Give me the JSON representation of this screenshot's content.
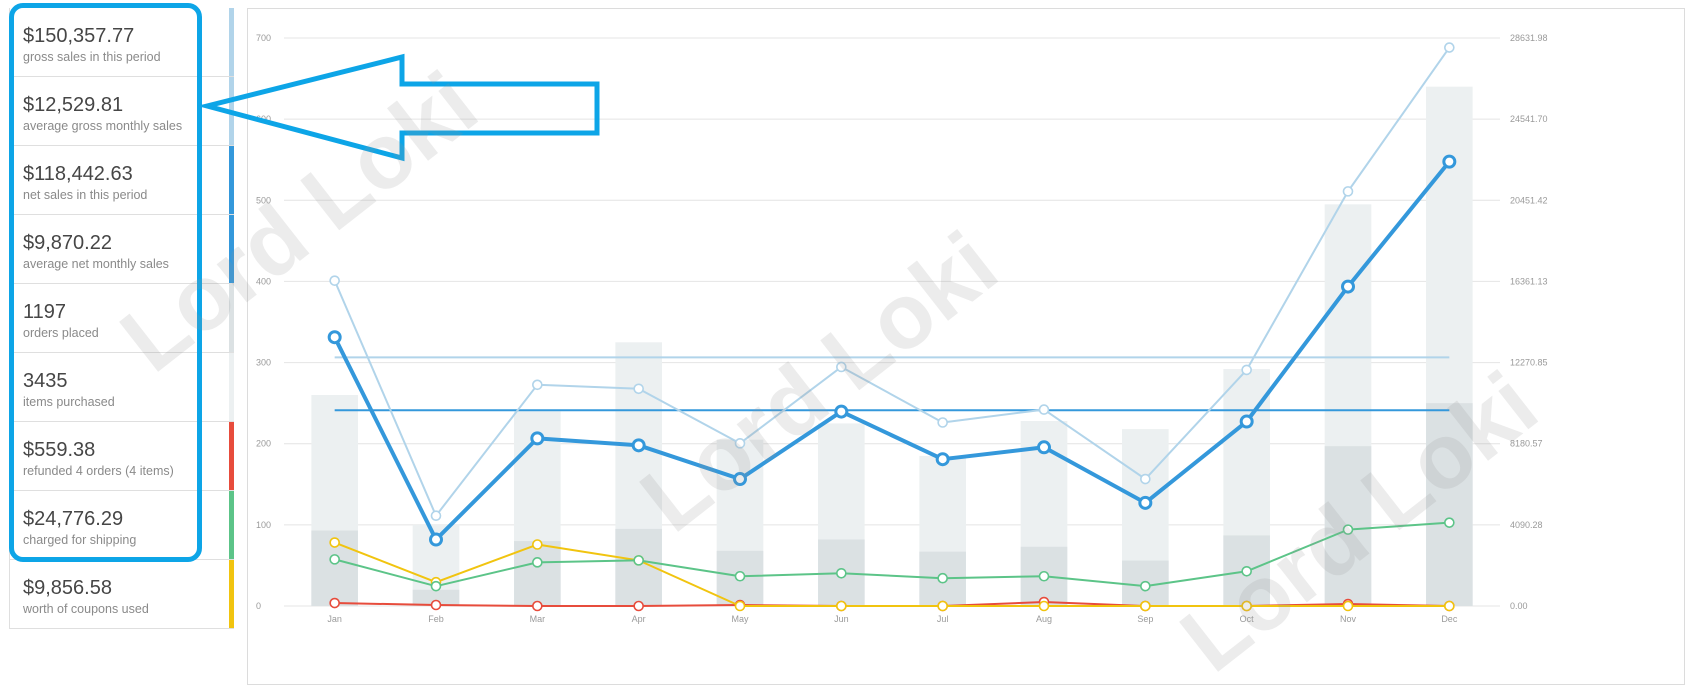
{
  "legend": [
    {
      "value": "$150,357.77",
      "label": "gross sales in this period",
      "color": "#b1d4ea"
    },
    {
      "value": "$12,529.81",
      "label": "average gross monthly sales",
      "color": "#b1d4ea"
    },
    {
      "value": "$118,442.63",
      "label": "net sales in this period",
      "color": "#3498db"
    },
    {
      "value": "$9,870.22",
      "label": "average net monthly sales",
      "color": "#3498db"
    },
    {
      "value": "1197",
      "label": "orders placed",
      "color": "#dbe1e3"
    },
    {
      "value": "3435",
      "label": "items purchased",
      "color": "#ecf0f1"
    },
    {
      "value": "$559.38",
      "label": "refunded 4 orders (4 items)",
      "color": "#e74c3c"
    },
    {
      "value": "$24,776.29",
      "label": "charged for shipping",
      "color": "#5cc488"
    },
    {
      "value": "$9,856.58",
      "label": "worth of coupons used",
      "color": "#f1c40f"
    }
  ],
  "watermark": "Lord Loki",
  "chart_data": {
    "type": "bar",
    "categories": [
      "Jan",
      "Feb",
      "Mar",
      "Apr",
      "May",
      "Jun",
      "Jul",
      "Aug",
      "Sep",
      "Oct",
      "Nov",
      "Dec"
    ],
    "ylim": [
      0,
      700
    ],
    "y_ticks": [
      "0",
      "100",
      "200",
      "300",
      "400",
      "500",
      "600",
      "700"
    ],
    "y2lim": [
      0,
      28631.98
    ],
    "y2_ticks": [
      "0.00",
      "4090.28",
      "8180.57",
      "12270.85",
      "16361.13",
      "20451.42",
      "24541.70",
      "28631.98"
    ],
    "series": [
      {
        "type": "bar",
        "axis": "left",
        "color": "#ecf0f1",
        "values": [
          260,
          100,
          240,
          325,
          205,
          225,
          185,
          228,
          218,
          292,
          495,
          640
        ]
      },
      {
        "type": "bar",
        "axis": "left",
        "color": "#dbe1e3",
        "values": [
          93,
          20,
          80,
          95,
          68,
          82,
          67,
          73,
          56,
          87,
          197,
          250
        ]
      },
      {
        "type": "line",
        "axis": "right",
        "color": "#b1d4ea",
        "width": 2,
        "values": [
          16400,
          4550,
          11150,
          10950,
          8200,
          12050,
          9250,
          9900,
          6400,
          11900,
          20900,
          28150
        ]
      },
      {
        "type": "line",
        "axis": "right",
        "color": "#3498db",
        "width": 4,
        "values": [
          13550,
          3350,
          8450,
          8100,
          6400,
          9800,
          7400,
          8000,
          5200,
          9300,
          16100,
          22400
        ]
      },
      {
        "type": "line",
        "axis": "right",
        "color": "#5cc488",
        "width": 2,
        "values": [
          2350,
          1000,
          2200,
          2300,
          1500,
          1650,
          1400,
          1500,
          1000,
          1750,
          3850,
          4200
        ]
      },
      {
        "type": "line",
        "axis": "right",
        "color": "#f1c40f",
        "width": 2,
        "values": [
          3200,
          1200,
          3100,
          2300,
          0,
          0,
          0,
          0,
          0,
          0,
          0,
          0
        ]
      },
      {
        "type": "line",
        "axis": "right",
        "color": "#e74c3c",
        "width": 2,
        "values": [
          150,
          50,
          0,
          0,
          50,
          0,
          0,
          200,
          0,
          0,
          100,
          0
        ]
      },
      {
        "type": "avgline",
        "axis": "right",
        "color": "#b1d4ea",
        "value": 12529.81
      },
      {
        "type": "avgline",
        "axis": "right",
        "color": "#3498db",
        "value": 9870.22
      }
    ],
    "grid": true
  }
}
